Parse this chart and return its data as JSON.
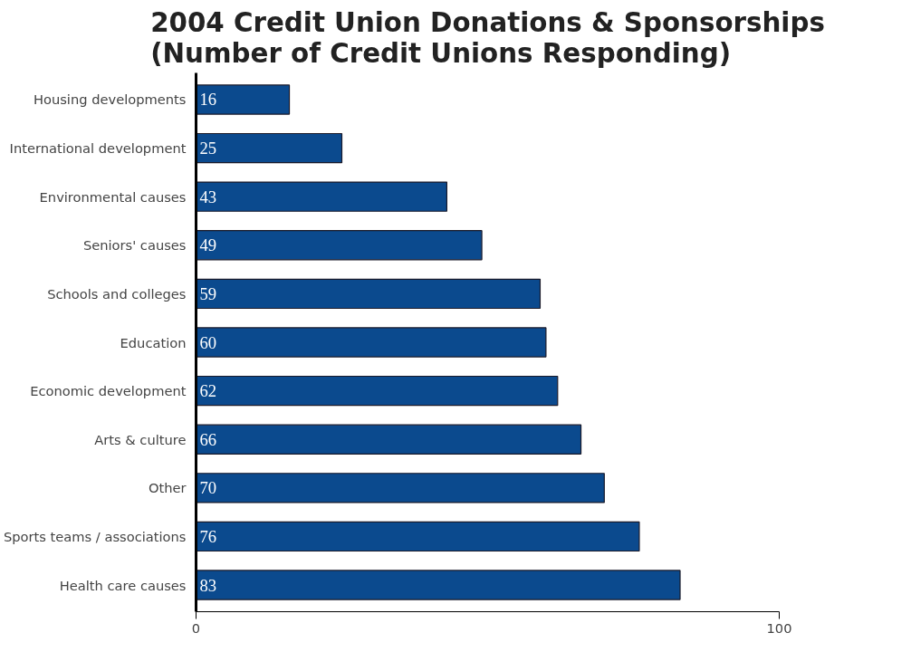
{
  "chart_data": {
    "type": "bar",
    "orientation": "horizontal",
    "title": "2004 Credit Union Donations & Sponsorships\n(Number of Credit Unions Responding)",
    "categories": [
      "Housing developments",
      "International development",
      "Environmental causes",
      "Seniors' causes",
      "Schools and colleges",
      "Education",
      "Economic development",
      "Arts & culture",
      "Other",
      "Sports teams / associations",
      "Health care causes"
    ],
    "values": [
      16,
      25,
      43,
      49,
      59,
      60,
      62,
      66,
      70,
      76,
      83
    ],
    "color": "#0b4a8e",
    "xlim": [
      0,
      100
    ],
    "xticks": [
      0,
      100
    ],
    "grid": false,
    "data_labels": true
  }
}
